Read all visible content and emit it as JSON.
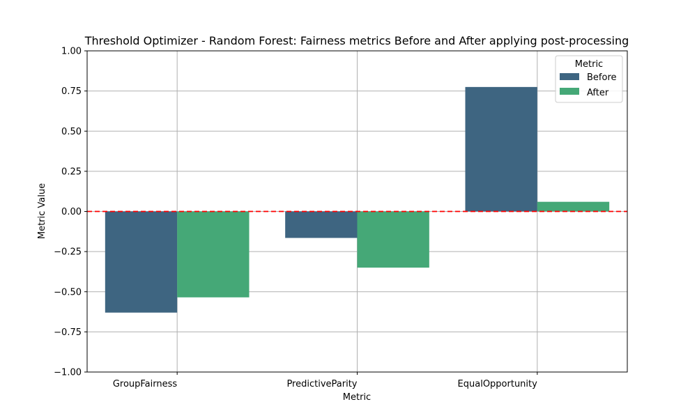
{
  "chart_data": {
    "type": "bar",
    "title": "Threshold Optimizer - Random Forest: Fairness metrics Before and After applying post-processing",
    "xlabel": "Metric",
    "ylabel": "Metric Value",
    "categories": [
      "GroupFairness",
      "PredictiveParity",
      "EqualOpportunity"
    ],
    "series": [
      {
        "name": "Before",
        "color": "#3e6581",
        "values": [
          -0.63,
          -0.165,
          0.775
        ]
      },
      {
        "name": "After",
        "color": "#45a877",
        "values": [
          -0.535,
          -0.35,
          0.06
        ]
      }
    ],
    "ylim": [
      -1.0,
      1.0
    ],
    "yticks": [
      -1.0,
      -0.75,
      -0.5,
      -0.25,
      0.0,
      0.25,
      0.5,
      0.75,
      1.0
    ],
    "ytick_labels": [
      "−1.00",
      "−0.75",
      "−0.50",
      "−0.25",
      "0.00",
      "0.25",
      "0.50",
      "0.75",
      "1.00"
    ],
    "grid": true,
    "reference_line": {
      "y": 0,
      "color": "#ff0000",
      "style": "dashed"
    },
    "legend": {
      "title": "Metric",
      "placement": "top-right"
    }
  }
}
